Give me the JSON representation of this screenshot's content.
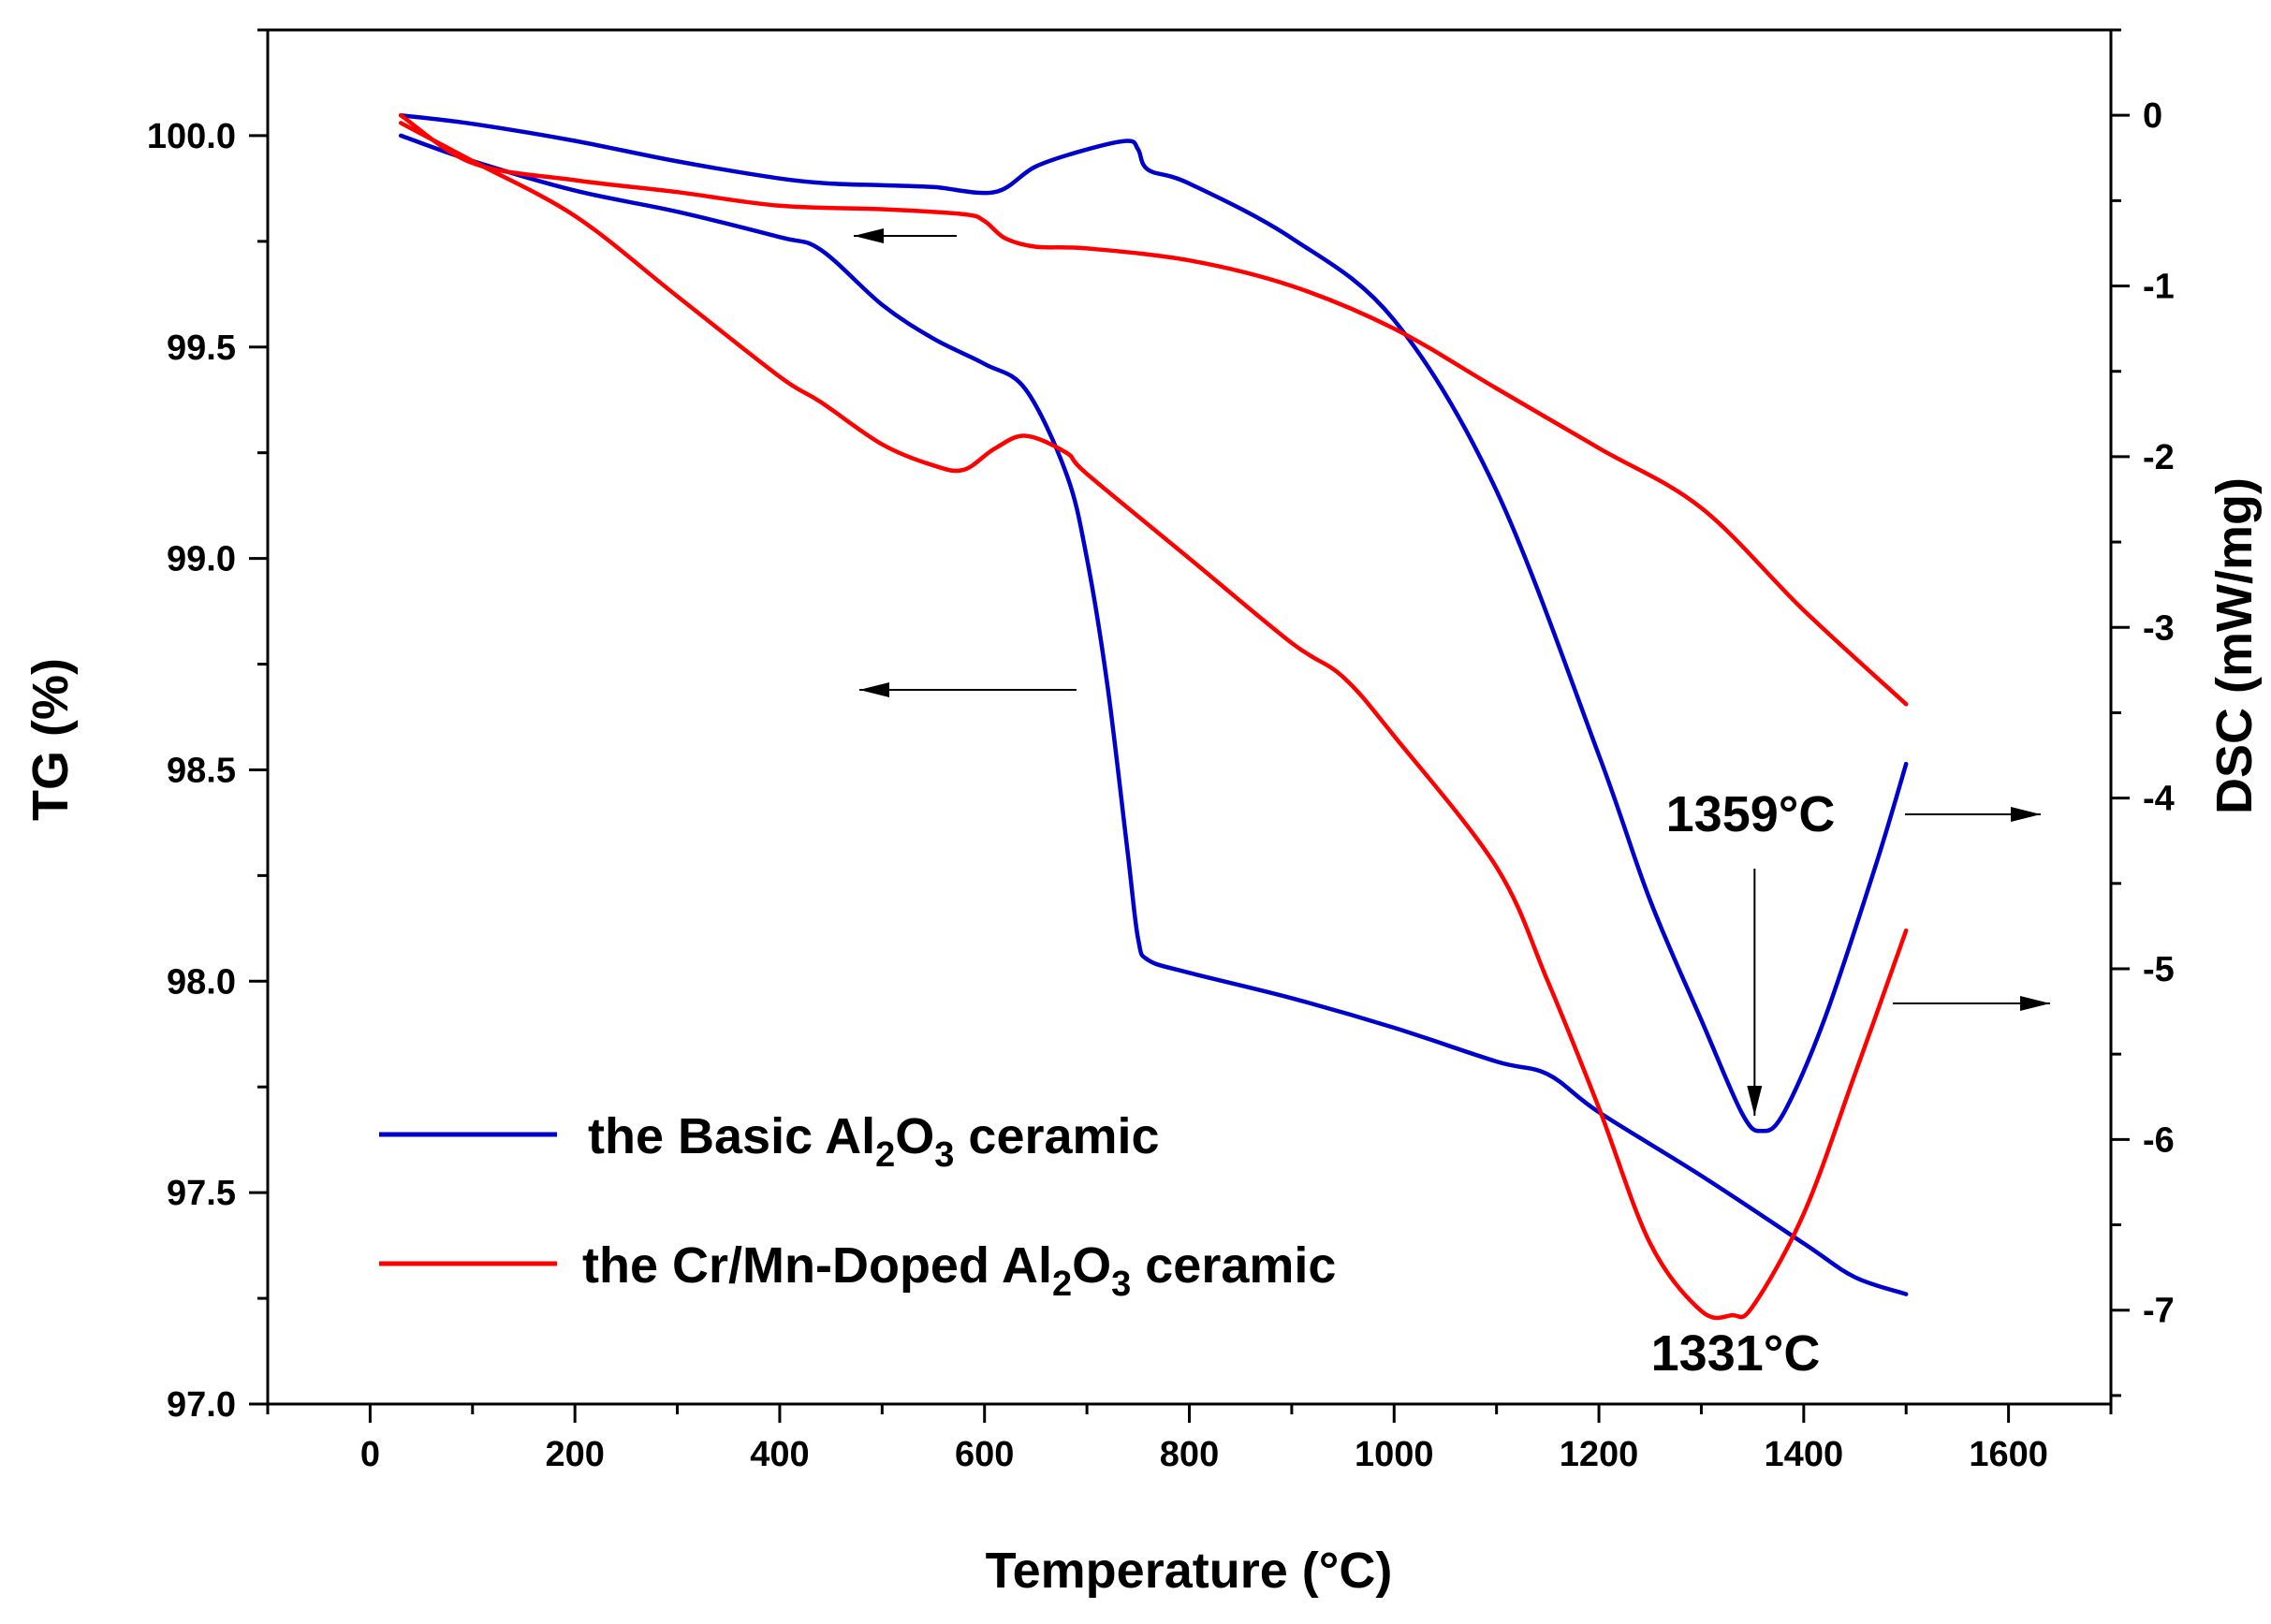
{
  "chart_data": {
    "type": "line",
    "xlabel": "Temperature (°C)",
    "ylabel_left": "TG (%)",
    "ylabel_right": "DSC (mW/mg)",
    "xlim": [
      -100,
      1700
    ],
    "ylim_left": [
      97.0,
      100.25
    ],
    "ylim_right": [
      -7.55,
      0.5
    ],
    "x_ticks": [
      0,
      200,
      400,
      600,
      800,
      1000,
      1200,
      1400,
      1600
    ],
    "y_left_ticks": [
      "97.0",
      "97.5",
      "98.0",
      "98.5",
      "99.0",
      "99.5",
      "100.0"
    ],
    "y_right_ticks": [
      "-7",
      "-6",
      "-5",
      "-4",
      "-3",
      "-2",
      "-1",
      "0"
    ],
    "grid": false,
    "legend": {
      "placement": "bottom-left",
      "entries": [
        {
          "prefix": "the Basic Al",
          "sub1": "2",
          "mid": "O",
          "sub2": "3",
          "suffix": " ceramic",
          "color": "#0000cc"
        },
        {
          "prefix": "the Cr/Mn-Doped Al",
          "sub1": "2",
          "mid": "O",
          "sub2": "3",
          "suffix": " ceramic",
          "color": "#ff0000"
        }
      ]
    },
    "series": [
      {
        "name": "the Basic Al2O3 ceramic",
        "curve": "TG",
        "axis": "left",
        "color": "#0000cc",
        "x": [
          30,
          100,
          200,
          300,
          400,
          440,
          500,
          550,
          600,
          640,
          680,
          700,
          720,
          740,
          750,
          760,
          800,
          900,
          1000,
          1100,
          1150,
          1200,
          1300,
          1400,
          1450,
          1500
        ],
        "y": [
          100.0,
          99.94,
          99.87,
          99.82,
          99.76,
          99.73,
          99.6,
          99.52,
          99.46,
          99.4,
          99.2,
          99.0,
          98.7,
          98.3,
          98.1,
          98.05,
          98.02,
          97.96,
          97.89,
          97.81,
          97.78,
          97.69,
          97.54,
          97.38,
          97.3,
          97.26
        ]
      },
      {
        "name": "the Cr/Mn-Doped Al2O3 ceramic",
        "curve": "TG",
        "axis": "left",
        "color": "#ff0000",
        "x": [
          30,
          100,
          200,
          300,
          400,
          440,
          500,
          550,
          580,
          610,
          640,
          680,
          700,
          800,
          900,
          950,
          1000,
          1100,
          1150,
          1200,
          1250,
          1300,
          1330,
          1350,
          1400,
          1450,
          1500
        ],
        "y": [
          100.03,
          99.94,
          99.81,
          99.62,
          99.43,
          99.37,
          99.27,
          99.22,
          99.21,
          99.26,
          99.29,
          99.25,
          99.2,
          99.0,
          98.8,
          98.72,
          98.58,
          98.27,
          98.0,
          97.7,
          97.38,
          97.22,
          97.21,
          97.23,
          97.45,
          97.78,
          98.12
        ]
      },
      {
        "name": "the Basic Al2O3 ceramic",
        "curve": "DSC",
        "axis": "right",
        "color": "#0000cc",
        "x": [
          30,
          100,
          200,
          300,
          400,
          450,
          500,
          550,
          610,
          650,
          700,
          740,
          750,
          760,
          800,
          900,
          1000,
          1100,
          1200,
          1250,
          1300,
          1340,
          1359,
          1380,
          1420,
          1470,
          1500
        ],
        "y": [
          0.0,
          -0.05,
          -0.15,
          -0.27,
          -0.37,
          -0.4,
          -0.41,
          -0.42,
          -0.45,
          -0.3,
          -0.2,
          -0.15,
          -0.2,
          -0.32,
          -0.4,
          -0.72,
          -1.2,
          -2.2,
          -3.75,
          -4.6,
          -5.3,
          -5.85,
          -5.95,
          -5.85,
          -5.3,
          -4.4,
          -3.8
        ]
      },
      {
        "name": "the Cr/Mn-Doped Al2O3 ceramic",
        "curve": "DSC",
        "axis": "right",
        "color": "#ff0000",
        "x": [
          30,
          100,
          200,
          300,
          400,
          500,
          580,
          600,
          620,
          650,
          700,
          800,
          900,
          1000,
          1100,
          1200,
          1300,
          1400,
          1500
        ],
        "y": [
          0.0,
          -0.28,
          -0.38,
          -0.45,
          -0.53,
          -0.55,
          -0.58,
          -0.62,
          -0.72,
          -0.77,
          -0.78,
          -0.85,
          -1.0,
          -1.25,
          -1.6,
          -1.95,
          -2.3,
          -2.9,
          -3.45
        ]
      }
    ],
    "annotations": [
      {
        "text": "1359°C",
        "x": 1359,
        "y_right": -5.95,
        "color": "#0000cc"
      },
      {
        "text": "1331°C",
        "x": 1331,
        "y_right": -7.0,
        "color": "#ff0000"
      }
    ]
  }
}
